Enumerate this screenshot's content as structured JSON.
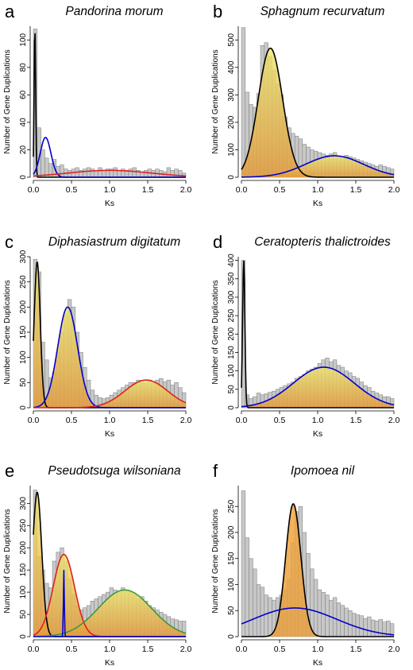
{
  "chart_data": [
    {
      "panel": "a",
      "title": "Pandorina morum",
      "type": "bar",
      "xlabel": "Ks",
      "ylabel": "Number of Gene Duplications",
      "xlim": [
        0,
        2.0
      ],
      "ylim": [
        0,
        110
      ],
      "xticks": [
        0.0,
        0.5,
        1.0,
        1.5,
        2.0
      ],
      "yticks": [
        0,
        20,
        40,
        60,
        80,
        100
      ],
      "bin_width": 0.05,
      "values": [
        108,
        36,
        20,
        14,
        10,
        13,
        8,
        9,
        6,
        5,
        6,
        7,
        5,
        6,
        7,
        6,
        5,
        7,
        5,
        6,
        6,
        7,
        5,
        6,
        5,
        6,
        7,
        5,
        4,
        5,
        6,
        5,
        6,
        5,
        4,
        7,
        5,
        6,
        5,
        3
      ],
      "shading": "none",
      "series": [
        {
          "color": "#000000",
          "mean": 0.02,
          "sd": 0.01,
          "peak": 110
        },
        {
          "color": "#0000cc",
          "mean": 0.16,
          "sd": 0.07,
          "peak": 29
        },
        {
          "color": "#e02020",
          "mean": 1.0,
          "sd": 0.55,
          "peak": 5
        }
      ]
    },
    {
      "panel": "b",
      "title": "Sphagnum recurvatum",
      "type": "bar",
      "xlabel": "Ks",
      "ylabel": "Number of Gene Duplications",
      "xlim": [
        0,
        2.0
      ],
      "ylim": [
        0,
        550
      ],
      "xticks": [
        0.0,
        0.5,
        1.0,
        1.5,
        2.0
      ],
      "yticks": [
        0,
        100,
        200,
        300,
        400,
        500
      ],
      "bin_width": 0.05,
      "values": [
        545,
        310,
        265,
        255,
        305,
        480,
        490,
        440,
        390,
        340,
        300,
        220,
        180,
        160,
        150,
        140,
        120,
        110,
        100,
        95,
        90,
        85,
        80,
        85,
        90,
        75,
        70,
        80,
        75,
        70,
        65,
        60,
        55,
        50,
        45,
        40,
        45,
        40,
        35,
        30
      ],
      "shading": "yellow-orange",
      "series": [
        {
          "color": "#000000",
          "mean": 0.38,
          "sd": 0.16,
          "peak": 470
        },
        {
          "color": "#0000cc",
          "mean": 1.22,
          "sd": 0.38,
          "peak": 78
        }
      ]
    },
    {
      "panel": "c",
      "title": "Diphasiastrum digitatum",
      "type": "bar",
      "xlabel": "Ks",
      "ylabel": "Number of Gene Duplications",
      "xlim": [
        0,
        2.0
      ],
      "ylim": [
        0,
        300
      ],
      "xticks": [
        0.0,
        0.5,
        1.0,
        1.5,
        2.0
      ],
      "yticks": [
        0,
        50,
        100,
        150,
        200,
        250,
        300
      ],
      "bin_width": 0.05,
      "values": [
        295,
        270,
        130,
        95,
        60,
        70,
        110,
        150,
        185,
        215,
        200,
        150,
        110,
        80,
        55,
        35,
        25,
        20,
        18,
        20,
        25,
        30,
        35,
        40,
        45,
        50,
        50,
        55,
        50,
        48,
        55,
        50,
        55,
        58,
        52,
        55,
        45,
        50,
        40,
        30
      ],
      "shading": "yellow-orange",
      "series": [
        {
          "color": "#000000",
          "mean": 0.05,
          "sd": 0.04,
          "peak": 290
        },
        {
          "color": "#0000cc",
          "mean": 0.45,
          "sd": 0.13,
          "peak": 200
        },
        {
          "color": "#e02020",
          "mean": 1.48,
          "sd": 0.28,
          "peak": 55
        }
      ]
    },
    {
      "panel": "d",
      "title": "Ceratopteris thalictroides",
      "type": "bar",
      "xlabel": "Ks",
      "ylabel": "Number of Gene Duplications",
      "xlim": [
        0,
        2.0
      ],
      "ylim": [
        0,
        410
      ],
      "xticks": [
        0.0,
        0.5,
        1.0,
        1.5,
        2.0
      ],
      "yticks": [
        0,
        50,
        100,
        150,
        200,
        250,
        300,
        350,
        400
      ],
      "bin_width": 0.05,
      "values": [
        400,
        35,
        25,
        30,
        40,
        35,
        38,
        42,
        45,
        50,
        55,
        60,
        65,
        70,
        80,
        85,
        90,
        100,
        105,
        110,
        120,
        130,
        135,
        125,
        130,
        115,
        110,
        100,
        95,
        85,
        80,
        70,
        60,
        55,
        45,
        40,
        35,
        30,
        30,
        25
      ],
      "shading": "yellow-orange",
      "series": [
        {
          "color": "#000000",
          "mean": 0.03,
          "sd": 0.015,
          "peak": 400
        },
        {
          "color": "#0000cc",
          "mean": 1.08,
          "sd": 0.4,
          "peak": 110
        }
      ]
    },
    {
      "panel": "e",
      "title": "Pseudotsuga wilsoniana",
      "type": "bar",
      "xlabel": "Ks",
      "ylabel": "Number of Gene Duplications",
      "xlim": [
        0,
        2.0
      ],
      "ylim": [
        0,
        340
      ],
      "xticks": [
        0.0,
        0.5,
        1.0,
        1.5,
        2.0
      ],
      "yticks": [
        0,
        50,
        100,
        150,
        200,
        250,
        300
      ],
      "bin_width": 0.05,
      "values": [
        330,
        180,
        150,
        120,
        110,
        170,
        190,
        200,
        170,
        130,
        95,
        70,
        60,
        65,
        70,
        80,
        85,
        90,
        95,
        100,
        110,
        105,
        100,
        110,
        105,
        100,
        95,
        85,
        90,
        80,
        70,
        65,
        60,
        55,
        50,
        45,
        40,
        38,
        35,
        35
      ],
      "shading": "yellow-orange",
      "series": [
        {
          "color": "#000000",
          "mean": 0.05,
          "sd": 0.06,
          "peak": 325
        },
        {
          "color": "#e02020",
          "mean": 0.4,
          "sd": 0.14,
          "peak": 185
        },
        {
          "color": "#3a9a3a",
          "mean": 1.2,
          "sd": 0.35,
          "peak": 105
        },
        {
          "color": "#0000cc",
          "mean": 0.4,
          "sd": 0.006,
          "peak": 150
        }
      ]
    },
    {
      "panel": "f",
      "title": "Ipomoea nil",
      "type": "bar",
      "xlabel": "Ks",
      "ylabel": "Number of Gene Duplications",
      "xlim": [
        0,
        2.0
      ],
      "ylim": [
        0,
        290
      ],
      "xticks": [
        0.0,
        0.5,
        1.0,
        1.5,
        2.0
      ],
      "yticks": [
        0,
        50,
        100,
        150,
        200,
        250
      ],
      "bin_width": 0.05,
      "values": [
        280,
        190,
        150,
        130,
        100,
        95,
        80,
        75,
        70,
        75,
        80,
        90,
        110,
        180,
        240,
        250,
        200,
        160,
        130,
        110,
        90,
        85,
        80,
        70,
        75,
        65,
        60,
        55,
        50,
        45,
        42,
        40,
        35,
        38,
        32,
        30,
        33,
        28,
        30,
        25
      ],
      "shading": "orange-peak",
      "series": [
        {
          "color": "#000000",
          "mean": 0.68,
          "sd": 0.1,
          "peak": 255
        },
        {
          "color": "#0000cc",
          "mean": 0.7,
          "sd": 0.55,
          "peak": 55
        }
      ]
    }
  ]
}
